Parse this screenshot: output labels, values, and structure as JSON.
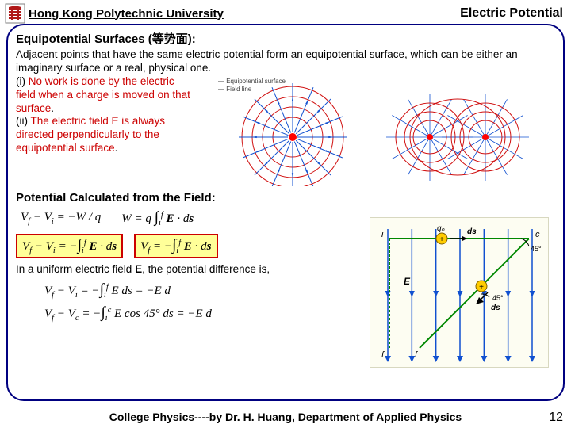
{
  "header": {
    "university": "Hong Kong Polytechnic University",
    "chapter": "Electric Potential"
  },
  "section1": {
    "title": "Equipotential Surfaces (等势面):",
    "intro": "Adjacent points that have the same electric potential form an equipotential surface, which can be either an imaginary surface or a real, physical one.",
    "point_i_label": "(i) ",
    "point_i_red": "No work is done by the electric field when a charge is moved on that surface",
    "point_i_tail": ".",
    "point_ii_label": "(ii) ",
    "point_ii_red": "The electric field E is always directed perpendicularly to the equipotential surface",
    "point_ii_tail": "."
  },
  "diagram_top": {
    "legend_equipotential": "Equipotential surface",
    "legend_field_line": "Field line",
    "equipotential_color": "#d01010",
    "field_line_color": "#1050d0",
    "charge_color": "#ff0000",
    "n_radial_lines": 16,
    "n_circles": 4
  },
  "section2": {
    "title": "Potential Calculated from the Field:",
    "eq1": "V_f − V_i = −W / q",
    "eq2": "W = q ∫_i^f E · ds",
    "eq3_boxed": "V_f − V_i = −∫_i^f E · ds",
    "eq4_boxed": "V_f = −∫_i^f E · ds",
    "uniform_intro": "In a uniform electric field E, the potential difference is,",
    "eq5": "V_f − V_i = −∫_i^f E ds = −E d",
    "eq6": "V_f − V_c = −∫_i^c E cos 45° ds = −E d"
  },
  "uniform_diagram": {
    "labels": {
      "i": "i",
      "f": "f",
      "c": "c",
      "q0": "q₀",
      "ds": "ds",
      "E": "E",
      "angle": "45°"
    },
    "field_color": "#1050d0",
    "path_if_color": "#008800",
    "path_ic_color": "#008800",
    "charge_fill": "#ffcc00",
    "n_field_lines": 7
  },
  "footer": {
    "text": "College Physics----by Dr. H. Huang, Department of Applied Physics",
    "page": "12"
  },
  "colors": {
    "frame_border": "#000080",
    "highlight_bg": "#ffff99",
    "highlight_border": "#cc0000",
    "red_text": "#cc0000",
    "logo_red": "#b01818",
    "logo_grey": "#808080"
  }
}
